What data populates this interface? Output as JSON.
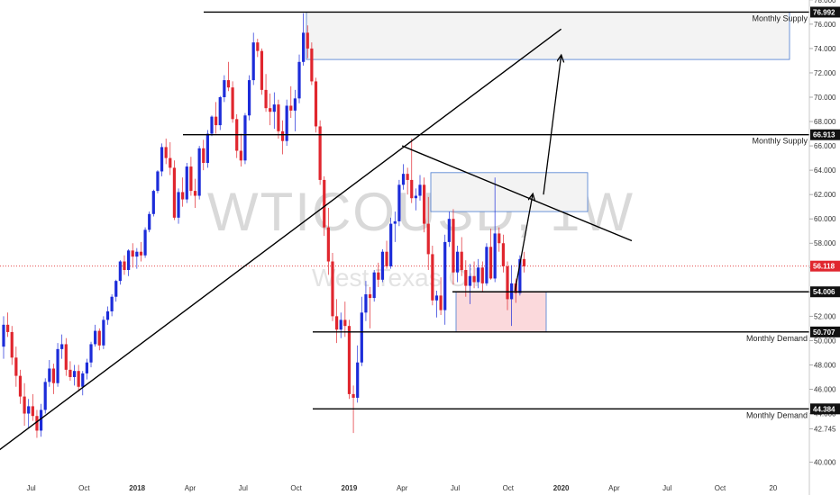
{
  "chart_data": {
    "type": "candlestick",
    "watermark": {
      "symbol": "WTICOUSD, 1W",
      "description": "West Texas Oil"
    },
    "y_axis": {
      "min": 40,
      "max": 78,
      "ticks": [
        "78.000",
        "76.000",
        "74.000",
        "72.000",
        "70.000",
        "68.000",
        "66.000",
        "64.000",
        "62.000",
        "60.000",
        "58.000",
        "56.000",
        "54.000",
        "52.000",
        "50.000",
        "48.000",
        "46.000",
        "44.000",
        "42.745",
        "40.000"
      ]
    },
    "x_axis": {
      "ticks": [
        "Jul",
        "Oct",
        "2018",
        "Apr",
        "Jul",
        "Oct",
        "2019",
        "Apr",
        "Jul",
        "Oct",
        "2020",
        "Apr",
        "Jul",
        "Oct",
        "20"
      ]
    },
    "current_price": "56.118",
    "levels": [
      {
        "value": 76.992,
        "label": "76.992",
        "note": "Monthly Supply",
        "color": "#000000"
      },
      {
        "value": 66.913,
        "label": "66.913",
        "note": "Monthly Supply",
        "color": "#000000"
      },
      {
        "value": 54.006,
        "label": "54.006",
        "note": "",
        "color": "#000000"
      },
      {
        "value": 50.707,
        "label": "50.707",
        "note": "Monthly Demand",
        "color": "#000000"
      },
      {
        "value": 44.384,
        "label": "44.384",
        "note": "Monthly Demand",
        "color": "#000000"
      }
    ],
    "zones": [
      {
        "kind": "supply",
        "top": 76.992,
        "bottom": 73.1
      },
      {
        "kind": "supply",
        "top": 63.8,
        "bottom": 60.6
      },
      {
        "kind": "demand",
        "top": 54.0,
        "bottom": 50.7
      }
    ],
    "trendlines": [
      {
        "from": [
          "2017-05",
          40.8
        ],
        "to": [
          "2020-01",
          75.6
        ]
      },
      {
        "from": [
          "2019-04",
          66.0
        ],
        "to": [
          "2020-05",
          58.2
        ]
      }
    ],
    "projection_path": [
      [
        "2019-11",
        54.1
      ],
      [
        "2019-12",
        62.0
      ],
      [
        "2020-01",
        73.4
      ]
    ],
    "candles": [
      [
        49.5,
        52.0,
        48.5,
        51.3
      ],
      [
        51.3,
        52.3,
        50.3,
        50.7
      ],
      [
        50.7,
        51.2,
        48.0,
        48.6
      ],
      [
        48.6,
        49.5,
        46.2,
        47.1
      ],
      [
        47.1,
        47.6,
        44.8,
        45.4
      ],
      [
        45.4,
        46.5,
        43.0,
        44.0
      ],
      [
        44.0,
        45.2,
        42.8,
        44.6
      ],
      [
        44.6,
        45.6,
        43.4,
        43.8
      ],
      [
        43.8,
        44.3,
        42.0,
        42.6
      ],
      [
        42.6,
        44.8,
        42.1,
        44.3
      ],
      [
        44.3,
        46.9,
        44.0,
        46.6
      ],
      [
        46.6,
        48.4,
        46.2,
        47.7
      ],
      [
        47.7,
        48.1,
        45.6,
        46.5
      ],
      [
        46.5,
        49.8,
        46.2,
        49.3
      ],
      [
        49.3,
        50.5,
        48.5,
        49.7
      ],
      [
        49.7,
        50.2,
        47.1,
        47.6
      ],
      [
        47.6,
        48.3,
        46.7,
        47.0
      ],
      [
        47.0,
        48.0,
        46.3,
        47.5
      ],
      [
        47.5,
        48.0,
        45.8,
        46.2
      ],
      [
        46.2,
        47.5,
        45.5,
        47.3
      ],
      [
        47.3,
        48.5,
        46.8,
        48.2
      ],
      [
        48.2,
        49.9,
        47.8,
        49.7
      ],
      [
        49.7,
        51.3,
        49.5,
        50.8
      ],
      [
        50.8,
        51.0,
        49.2,
        49.6
      ],
      [
        49.6,
        52.0,
        49.3,
        51.7
      ],
      [
        51.7,
        52.8,
        51.3,
        52.4
      ],
      [
        52.4,
        53.8,
        52.0,
        53.6
      ],
      [
        53.6,
        55.0,
        53.2,
        54.9
      ],
      [
        54.9,
        56.6,
        54.6,
        56.5
      ],
      [
        56.5,
        57.0,
        55.4,
        55.8
      ],
      [
        55.8,
        57.5,
        55.3,
        57.4
      ],
      [
        57.4,
        58.0,
        56.0,
        56.9
      ],
      [
        56.9,
        57.6,
        55.9,
        57.3
      ],
      [
        57.3,
        58.1,
        56.5,
        57.0
      ],
      [
        57.0,
        59.3,
        56.8,
        59.1
      ],
      [
        59.1,
        60.6,
        58.9,
        60.4
      ],
      [
        60.4,
        62.4,
        60.2,
        62.3
      ],
      [
        62.3,
        64.0,
        62.1,
        63.9
      ],
      [
        63.9,
        66.2,
        63.5,
        65.9
      ],
      [
        65.9,
        66.6,
        64.5,
        65.0
      ],
      [
        65.0,
        66.3,
        63.6,
        64.2
      ],
      [
        64.2,
        64.8,
        59.9,
        60.1
      ],
      [
        60.1,
        62.5,
        59.6,
        62.2
      ],
      [
        62.2,
        63.4,
        61.0,
        61.6
      ],
      [
        61.6,
        64.6,
        61.3,
        64.3
      ],
      [
        64.3,
        65.1,
        61.9,
        62.3
      ],
      [
        62.3,
        63.3,
        60.9,
        61.9
      ],
      [
        61.9,
        66.0,
        61.6,
        65.8
      ],
      [
        65.8,
        66.5,
        64.0,
        64.6
      ],
      [
        64.6,
        67.3,
        64.2,
        67.0
      ],
      [
        67.0,
        68.5,
        66.8,
        68.4
      ],
      [
        68.4,
        69.6,
        67.0,
        67.7
      ],
      [
        67.7,
        70.1,
        67.3,
        70.0
      ],
      [
        70.0,
        71.8,
        69.6,
        71.4
      ],
      [
        71.4,
        72.9,
        70.5,
        70.8
      ],
      [
        70.8,
        71.3,
        67.9,
        68.2
      ],
      [
        68.2,
        68.6,
        65.0,
        65.6
      ],
      [
        65.6,
        67.0,
        64.3,
        64.8
      ],
      [
        64.8,
        68.7,
        64.5,
        68.5
      ],
      [
        68.5,
        71.8,
        68.1,
        71.4
      ],
      [
        71.4,
        75.3,
        71.0,
        74.5
      ],
      [
        74.5,
        74.8,
        73.3,
        73.8
      ],
      [
        73.8,
        74.0,
        70.2,
        70.6
      ],
      [
        70.6,
        71.9,
        68.8,
        69.1
      ],
      [
        69.1,
        70.3,
        67.7,
        68.8
      ],
      [
        68.8,
        70.4,
        67.4,
        69.4
      ],
      [
        69.4,
        69.8,
        66.6,
        67.2
      ],
      [
        67.2,
        68.1,
        65.3,
        66.4
      ],
      [
        66.4,
        69.8,
        66.0,
        69.3
      ],
      [
        69.3,
        70.9,
        68.3,
        68.9
      ],
      [
        68.9,
        70.6,
        67.2,
        69.9
      ],
      [
        69.9,
        73.5,
        69.5,
        72.9
      ],
      [
        72.9,
        76.9,
        72.6,
        75.3
      ],
      [
        75.3,
        75.9,
        73.2,
        74.0
      ],
      [
        74.0,
        74.5,
        71.0,
        71.3
      ],
      [
        71.3,
        71.6,
        67.1,
        67.6
      ],
      [
        67.6,
        68.1,
        62.8,
        63.2
      ],
      [
        63.2,
        63.5,
        58.6,
        59.3
      ],
      [
        59.3,
        60.9,
        55.4,
        56.5
      ],
      [
        56.5,
        57.2,
        51.6,
        52.0
      ],
      [
        52.0,
        53.4,
        49.8,
        50.9
      ],
      [
        50.9,
        52.3,
        50.2,
        51.7
      ],
      [
        51.7,
        53.2,
        50.3,
        51.2
      ],
      [
        51.2,
        51.7,
        45.2,
        45.6
      ],
      [
        45.6,
        46.3,
        42.4,
        45.3
      ],
      [
        45.3,
        49.6,
        44.9,
        48.2
      ],
      [
        48.2,
        53.6,
        47.9,
        52.3
      ],
      [
        52.3,
        54.9,
        51.6,
        53.8
      ],
      [
        53.8,
        54.4,
        51.0,
        53.5
      ],
      [
        53.5,
        55.8,
        53.2,
        55.6
      ],
      [
        55.6,
        56.4,
        54.4,
        55.0
      ],
      [
        55.0,
        57.5,
        54.8,
        57.3
      ],
      [
        57.3,
        58.2,
        55.9,
        56.1
      ],
      [
        56.1,
        60.1,
        55.9,
        59.6
      ],
      [
        59.6,
        60.6,
        58.1,
        59.8
      ],
      [
        59.8,
        63.2,
        59.4,
        62.8
      ],
      [
        62.8,
        64.5,
        62.4,
        63.7
      ],
      [
        63.7,
        64.2,
        62.0,
        63.2
      ],
      [
        63.2,
        66.6,
        61.3,
        61.7
      ],
      [
        61.7,
        62.5,
        60.7,
        61.9
      ],
      [
        61.9,
        63.6,
        61.5,
        62.8
      ],
      [
        62.8,
        63.4,
        58.9,
        59.6
      ],
      [
        59.6,
        61.8,
        55.8,
        57.1
      ],
      [
        57.1,
        57.8,
        52.9,
        53.3
      ],
      [
        53.3,
        54.1,
        51.9,
        53.7
      ],
      [
        53.7,
        55.2,
        52.1,
        52.5
      ],
      [
        52.5,
        58.7,
        51.3,
        58.1
      ],
      [
        58.1,
        60.6,
        57.7,
        60.0
      ],
      [
        60.0,
        60.8,
        54.6,
        55.6
      ],
      [
        55.6,
        57.8,
        54.8,
        57.3
      ],
      [
        57.3,
        58.5,
        55.3,
        55.8
      ],
      [
        55.8,
        56.6,
        53.6,
        54.5
      ],
      [
        54.5,
        56.3,
        53.0,
        55.3
      ],
      [
        55.3,
        56.5,
        54.3,
        54.8
      ],
      [
        54.8,
        56.7,
        54.3,
        56.0
      ],
      [
        56.0,
        56.5,
        54.0,
        54.7
      ],
      [
        54.7,
        58.0,
        54.5,
        57.7
      ],
      [
        57.7,
        59.2,
        55.0,
        55.1
      ],
      [
        55.1,
        63.4,
        54.8,
        58.8
      ],
      [
        58.8,
        59.3,
        57.3,
        58.0
      ],
      [
        58.0,
        58.7,
        55.6,
        56.1
      ],
      [
        56.1,
        56.5,
        52.5,
        53.4
      ],
      [
        53.4,
        56.2,
        51.2,
        54.7
      ],
      [
        54.7,
        55.1,
        53.1,
        53.9
      ],
      [
        53.9,
        57.0,
        53.7,
        56.7
      ],
      [
        56.7,
        57.3,
        55.6,
        56.1
      ]
    ]
  }
}
